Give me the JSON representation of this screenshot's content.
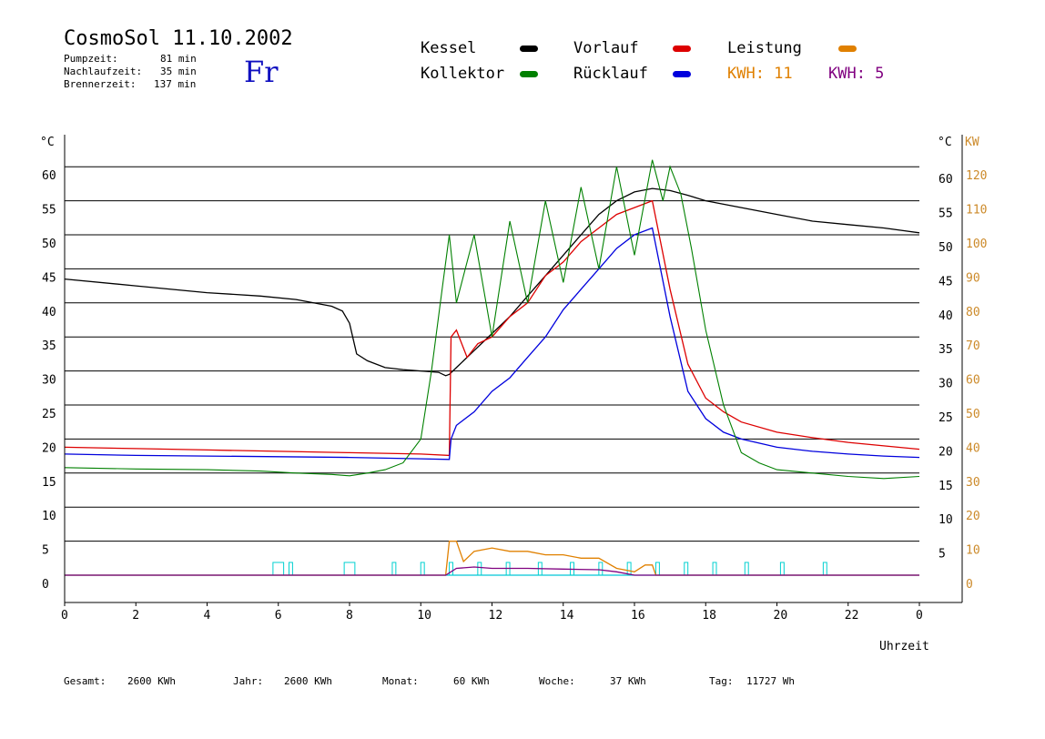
{
  "header": {
    "title": "CosmoSol 11.10.2002",
    "day": "Fr",
    "stats": [
      {
        "label": "Pumpzeit:",
        "value": "81 min"
      },
      {
        "label": "Nachlaufzeit:",
        "value": "35 min"
      },
      {
        "label": "Brennerzeit:",
        "value": "137 min"
      }
    ]
  },
  "legend": {
    "kessel": "Kessel",
    "vorlauf": "Vorlauf",
    "leistung": "Leistung",
    "kollektor": "Kollektor",
    "ruecklauf": "Rücklauf",
    "kwh_orange": "KWH: 11",
    "kwh_purple": "KWH: 5"
  },
  "footer": [
    {
      "label": "Gesamt:",
      "value": "2600 KWh"
    },
    {
      "label": "Jahr:",
      "value": "2600 KWh"
    },
    {
      "label": "Monat:",
      "value": "60 KWh"
    },
    {
      "label": "Woche:",
      "value": "37 KWh"
    },
    {
      "label": "Tag:",
      "value": "11727 Wh"
    }
  ],
  "colors": {
    "kessel": "#000000",
    "vorlauf": "#dd0000",
    "ruecklauf": "#0000dd",
    "kollektor": "#008000",
    "leistung": "#e08000",
    "leistung_axis": "#cc8a2a",
    "kwh_purple": "#800080",
    "pump": "#00d0d0"
  },
  "chart_data": {
    "type": "line",
    "xlabel": "Uhrzeit",
    "x_ticks": [
      "0",
      "2",
      "4",
      "6",
      "8",
      "10",
      "12",
      "14",
      "16",
      "18",
      "20",
      "22",
      "0"
    ],
    "xlim": [
      0,
      24
    ],
    "ylim": [
      0,
      65
    ],
    "y_left_unit": "°C",
    "y_left_ticks": [
      0,
      5,
      10,
      15,
      20,
      25,
      30,
      35,
      40,
      45,
      50,
      55,
      60
    ],
    "y_right_unit": "°C",
    "y_right_ticks": [
      5,
      10,
      15,
      20,
      25,
      30,
      35,
      40,
      45,
      50,
      55,
      60
    ],
    "y_right2_unit": "KW",
    "y_right2_ticks": [
      0,
      10,
      20,
      30,
      40,
      50,
      60,
      70,
      80,
      90,
      100,
      110,
      120
    ],
    "grid": true,
    "series": [
      {
        "name": "Kessel",
        "color_key": "kessel",
        "x": [
          0,
          2,
          4,
          5.5,
          6.5,
          7.5,
          7.8,
          8.0,
          8.2,
          8.5,
          9,
          9.5,
          10,
          10.5,
          10.7,
          10.8,
          11,
          11.5,
          12,
          12.5,
          13,
          13.5,
          14,
          14.5,
          15,
          15.5,
          16,
          16.5,
          17,
          17.5,
          18,
          19,
          20,
          21,
          22,
          23,
          24
        ],
        "y": [
          43.5,
          42.5,
          41.5,
          41,
          40.5,
          39.5,
          38.8,
          37,
          32.5,
          31.5,
          30.5,
          30.2,
          30,
          29.8,
          29.3,
          29.5,
          30.5,
          33,
          35.5,
          38,
          41,
          44,
          47,
          50,
          53,
          55,
          56.3,
          56.8,
          56.5,
          55.8,
          55,
          54,
          53,
          52,
          51.5,
          51,
          50.3
        ]
      },
      {
        "name": "Vorlauf",
        "color_key": "vorlauf",
        "x": [
          0,
          2,
          4,
          6,
          8,
          10,
          10.8,
          10.85,
          11,
          11.3,
          11.6,
          12,
          12.5,
          13,
          13.5,
          14,
          14.5,
          15,
          15.5,
          16,
          16.5,
          17,
          17.5,
          18,
          18.5,
          19,
          20,
          21,
          22,
          23,
          24
        ],
        "y": [
          18.8,
          18.6,
          18.4,
          18.2,
          18,
          17.8,
          17.6,
          35,
          36,
          32,
          34,
          35,
          38,
          40,
          44,
          46,
          49,
          51,
          53,
          54,
          55,
          42,
          31,
          26,
          24,
          22.5,
          21,
          20.2,
          19.5,
          19,
          18.5
        ]
      },
      {
        "name": "Rücklauf",
        "color_key": "ruecklauf",
        "x": [
          0,
          2,
          4,
          6,
          8,
          10,
          10.8,
          10.85,
          11,
          11.5,
          12,
          12.5,
          13,
          13.5,
          14,
          14.5,
          15,
          15.5,
          16,
          16.5,
          17,
          17.5,
          18,
          18.5,
          19,
          20,
          21,
          22,
          23,
          24
        ],
        "y": [
          17.8,
          17.6,
          17.5,
          17.4,
          17.3,
          17.1,
          17.0,
          20,
          22,
          24,
          27,
          29,
          32,
          35,
          39,
          42,
          45,
          48,
          50,
          51,
          38,
          27,
          23,
          21,
          20,
          18.8,
          18.2,
          17.8,
          17.5,
          17.3
        ]
      },
      {
        "name": "Kollektor",
        "color_key": "kollektor",
        "x": [
          0,
          2,
          4,
          5.5,
          6.5,
          7.5,
          8,
          8.5,
          9,
          9.5,
          10,
          10.3,
          10.6,
          10.8,
          11,
          11.5,
          12,
          12.5,
          13,
          13.5,
          14,
          14.5,
          15,
          15.5,
          16,
          16.5,
          16.8,
          17,
          17.3,
          17.6,
          18,
          18.5,
          19,
          19.5,
          20,
          21,
          22,
          23,
          24
        ],
        "y": [
          15.8,
          15.6,
          15.5,
          15.3,
          15,
          14.8,
          14.6,
          15,
          15.5,
          16.5,
          20,
          30,
          42,
          50,
          40,
          50,
          35,
          52,
          40,
          55,
          43,
          57,
          45,
          60,
          47,
          61,
          55,
          60,
          56,
          48,
          36,
          25,
          18,
          16.5,
          15.5,
          15,
          14.5,
          14.2,
          14.5
        ]
      },
      {
        "name": "Leistung",
        "color_key": "leistung",
        "x": [
          0,
          10.7,
          10.8,
          11,
          11.2,
          11.5,
          12,
          12.5,
          13,
          13.5,
          14,
          14.5,
          15,
          15.5,
          16,
          16.3,
          16.5,
          16.6,
          24
        ],
        "y": [
          0,
          0,
          5,
          5,
          2,
          3.5,
          4,
          3.5,
          3.5,
          3,
          3,
          2.5,
          2.5,
          1,
          0.5,
          1.5,
          1.5,
          0,
          0
        ]
      },
      {
        "name": "KWH",
        "color_key": "kwh_purple",
        "x": [
          0,
          10.7,
          11,
          11.5,
          12,
          13,
          14,
          15,
          15.5,
          16,
          24
        ],
        "y": [
          0,
          0,
          1,
          1.2,
          1,
          1,
          0.9,
          0.8,
          0.5,
          0,
          0
        ]
      }
    ],
    "pump_on": [
      [
        5.85,
        6.15
      ],
      [
        6.3,
        6.4
      ],
      [
        7.85,
        8.15
      ],
      [
        9.2,
        9.3
      ],
      [
        10.0,
        10.1
      ],
      [
        10.8,
        10.9
      ],
      [
        11.6,
        11.7
      ],
      [
        12.4,
        12.5
      ],
      [
        13.3,
        13.4
      ],
      [
        14.2,
        14.3
      ],
      [
        15.0,
        15.1
      ],
      [
        15.8,
        15.9
      ],
      [
        16.6,
        16.7
      ],
      [
        17.4,
        17.5
      ],
      [
        18.2,
        18.3
      ],
      [
        19.1,
        19.2
      ],
      [
        20.1,
        20.2
      ],
      [
        21.3,
        21.4
      ]
    ]
  }
}
